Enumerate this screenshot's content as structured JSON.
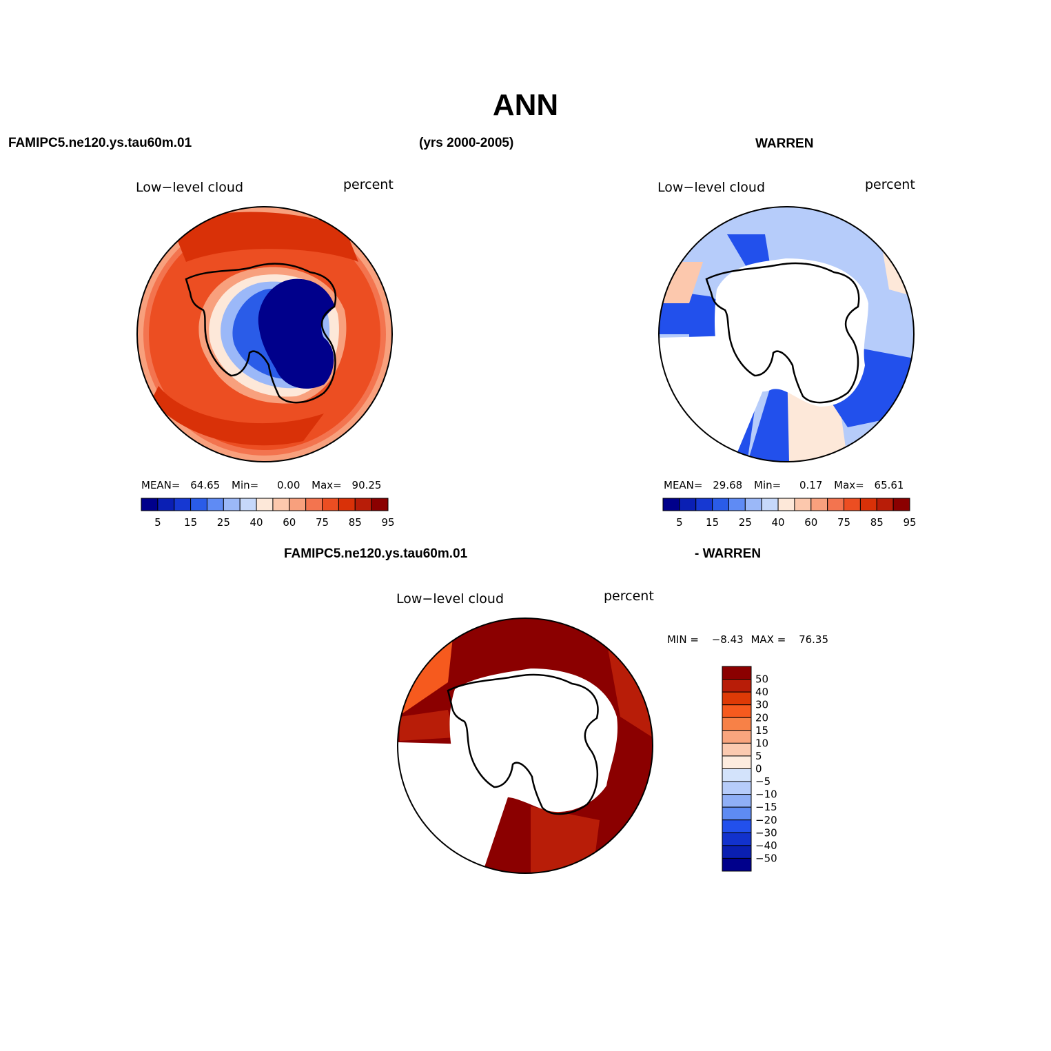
{
  "title": "ANN",
  "case_label": "FAMIPC5.ne120.ys.tau60m.01",
  "years_label": "(yrs 2000-2005)",
  "obs_label": "WARREN",
  "diff_case_label": "FAMIPC5.ne120.ys.tau60m.01",
  "diff_obs_label": "- WARREN",
  "panels": [
    {
      "variable": "Low−level cloud",
      "units": "percent",
      "stats": {
        "mean_label": "MEAN=",
        "mean": "64.65",
        "min_label": "Min=",
        "min": "0.00",
        "max_label": "Max=",
        "max": "90.25"
      }
    },
    {
      "variable": "Low−level cloud",
      "units": "percent",
      "stats": {
        "mean_label": "MEAN=",
        "mean": "29.68",
        "min_label": "Min=",
        "min": "0.17",
        "max_label": "Max=",
        "max": "65.61"
      }
    },
    {
      "variable": "Low−level cloud",
      "units": "percent",
      "stats": {
        "min_label": "MIN =",
        "min": "−8.43",
        "max_label": "MAX =",
        "max": "76.35"
      }
    }
  ],
  "colorbar_abs": {
    "colors": [
      "#00008b",
      "#0a1fb4",
      "#1638d2",
      "#2a5ce8",
      "#5f8bf4",
      "#9bb8f8",
      "#c6d8fa",
      "#fde8d9",
      "#fcc8ad",
      "#f8a07d",
      "#f3744f",
      "#ec4e22",
      "#d93108",
      "#b81d08",
      "#8b0000"
    ],
    "labels": [
      "5",
      "15",
      "25",
      "40",
      "60",
      "75",
      "85",
      "95"
    ]
  },
  "colorbar_diff": {
    "colors": [
      "#8b0000",
      "#b81d08",
      "#de3a06",
      "#f65a1e",
      "#f78147",
      "#f9a57e",
      "#fbcab0",
      "#fdecdf",
      "#d3e3fb",
      "#b6ccfa",
      "#8faff6",
      "#5e8bf2",
      "#2250ec",
      "#1232cd",
      "#0a1fb1",
      "#00008b"
    ],
    "labels": [
      "50",
      "40",
      "30",
      "20",
      "15",
      "10",
      "5",
      "0",
      "−5",
      "−10",
      "−15",
      "−20",
      "−30",
      "−40",
      "−50"
    ]
  }
}
